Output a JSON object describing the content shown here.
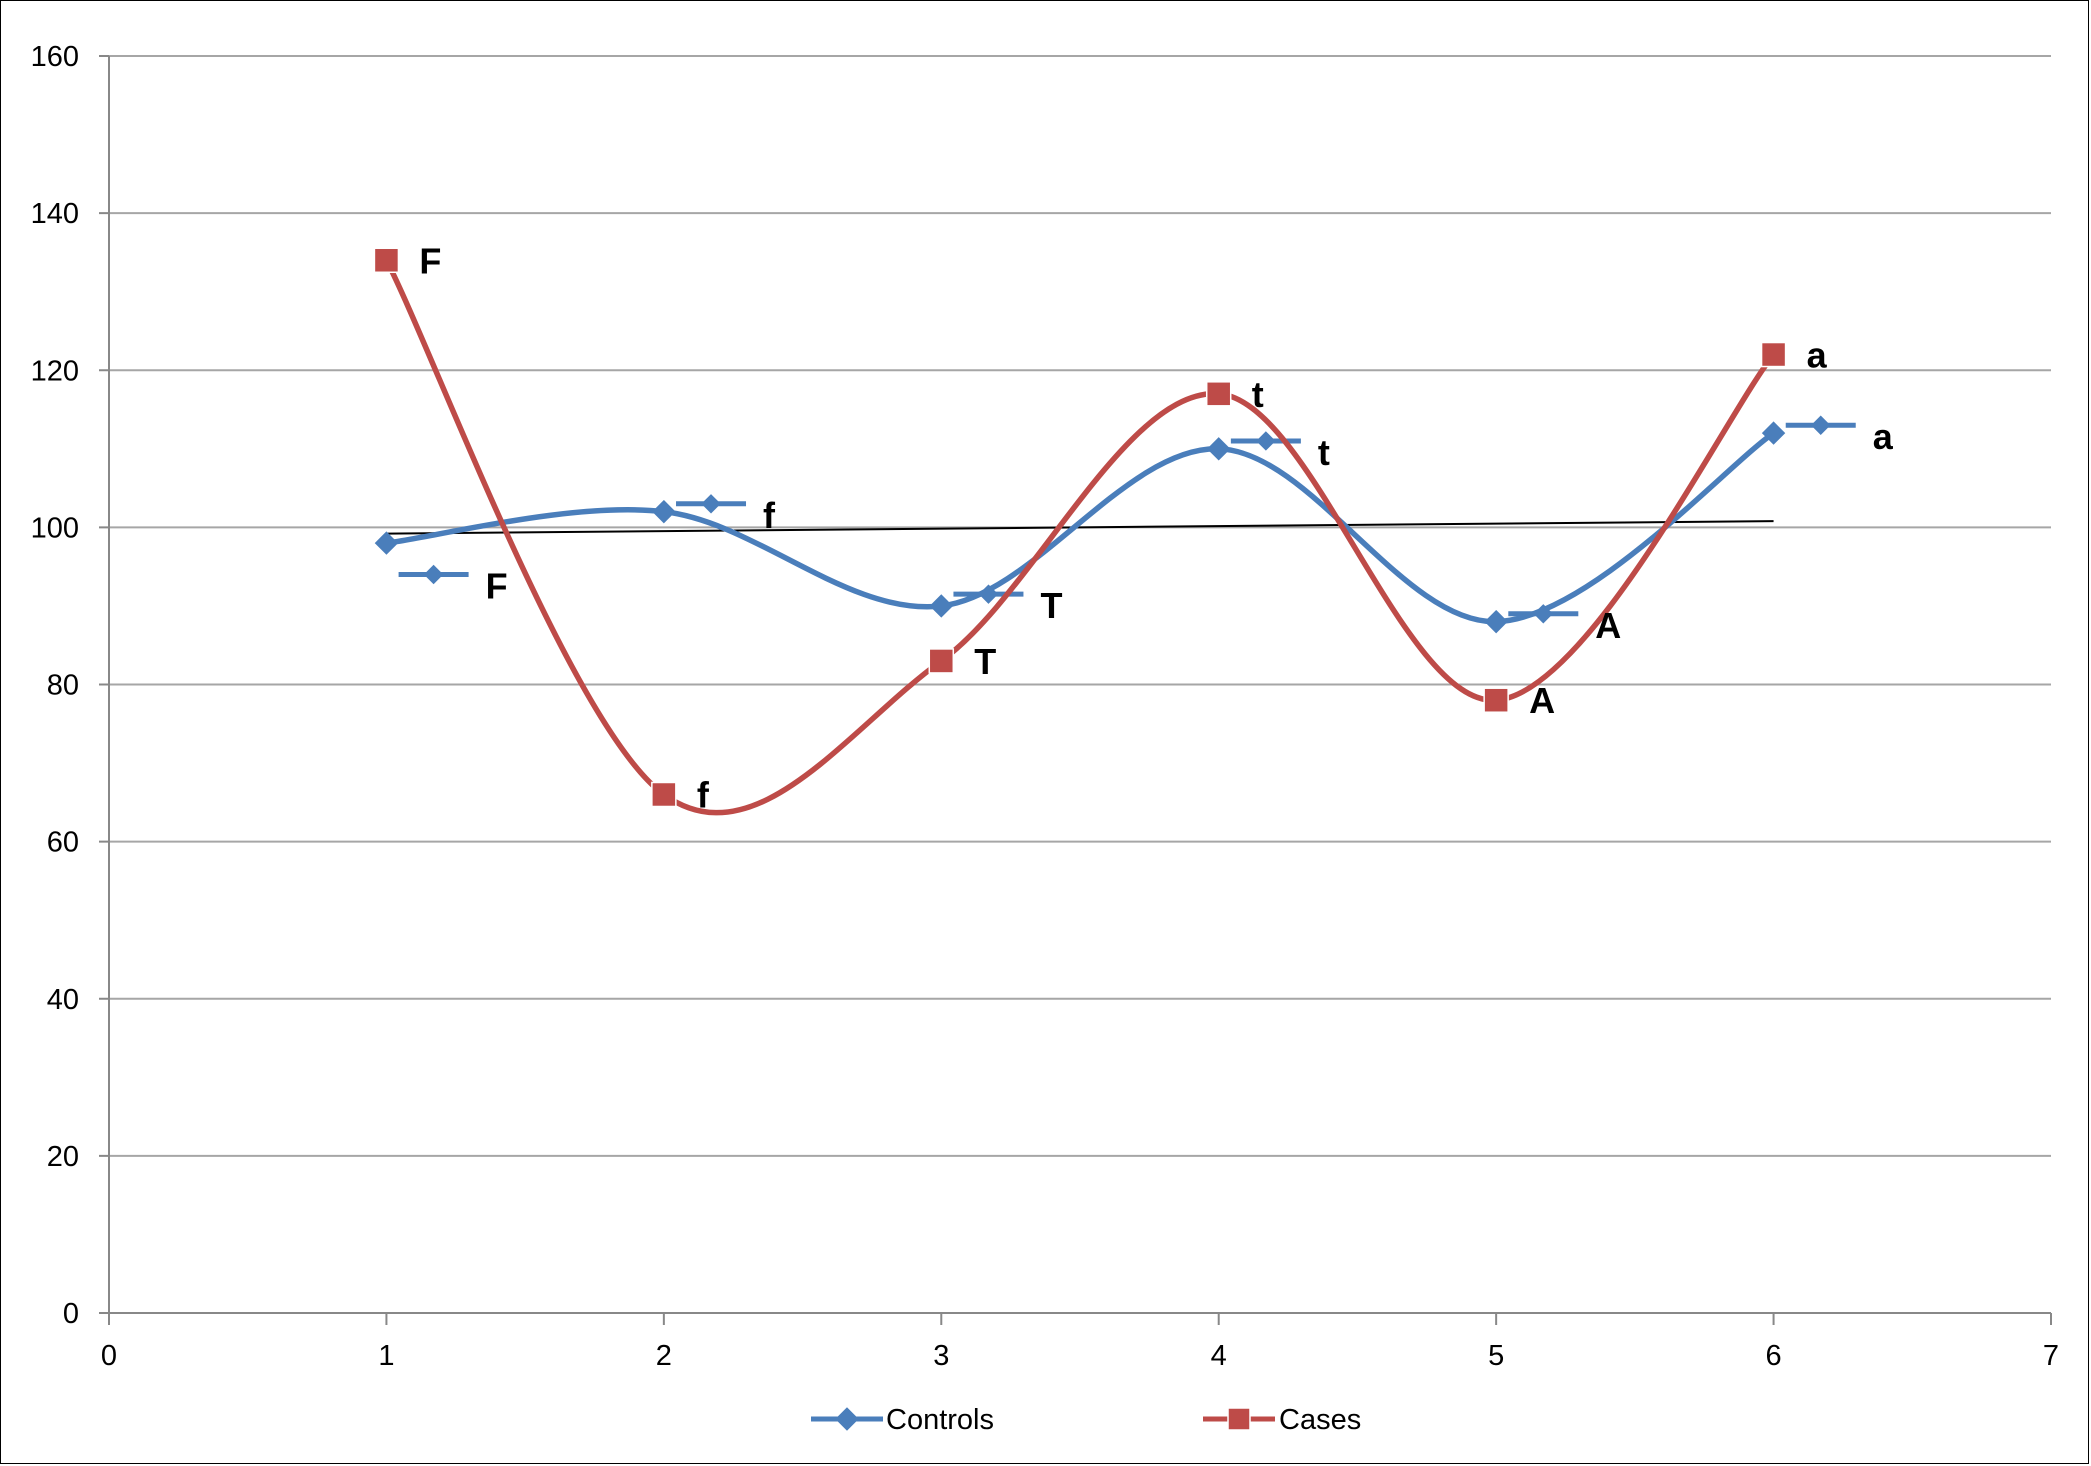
{
  "chart_data": {
    "type": "line",
    "title": "",
    "xlabel": "",
    "ylabel": "",
    "xlim": [
      0,
      7
    ],
    "ylim": [
      0,
      160
    ],
    "x_ticks": [
      "0",
      "1",
      "2",
      "3",
      "4",
      "5",
      "6",
      "7"
    ],
    "y_ticks": [
      "0",
      "20",
      "40",
      "60",
      "80",
      "100",
      "120",
      "140",
      "160"
    ],
    "grid": "horizontal",
    "legend_position": "bottom",
    "series": [
      {
        "name": "Controls",
        "color": "#4a7ebb",
        "marker": "diamond",
        "smooth": true,
        "x": [
          1,
          2,
          3,
          4,
          5,
          6
        ],
        "y": [
          98,
          102,
          90,
          110,
          88,
          112
        ],
        "labels": [
          "F",
          "f",
          "T",
          "t",
          "A",
          "a"
        ],
        "label_markers_y": [
          94,
          103,
          91.5,
          111,
          89,
          113
        ]
      },
      {
        "name": "Cases",
        "color": "#be4b48",
        "marker": "square",
        "smooth": true,
        "x": [
          1,
          2,
          3,
          4,
          5,
          6
        ],
        "y": [
          134,
          66,
          83,
          117,
          78,
          122
        ],
        "labels": [
          "F",
          "f",
          "T",
          "t",
          "A",
          "a"
        ]
      }
    ],
    "trendline": {
      "color": "#000000",
      "x": [
        1,
        6
      ],
      "y": [
        99.2,
        100.8
      ]
    }
  }
}
